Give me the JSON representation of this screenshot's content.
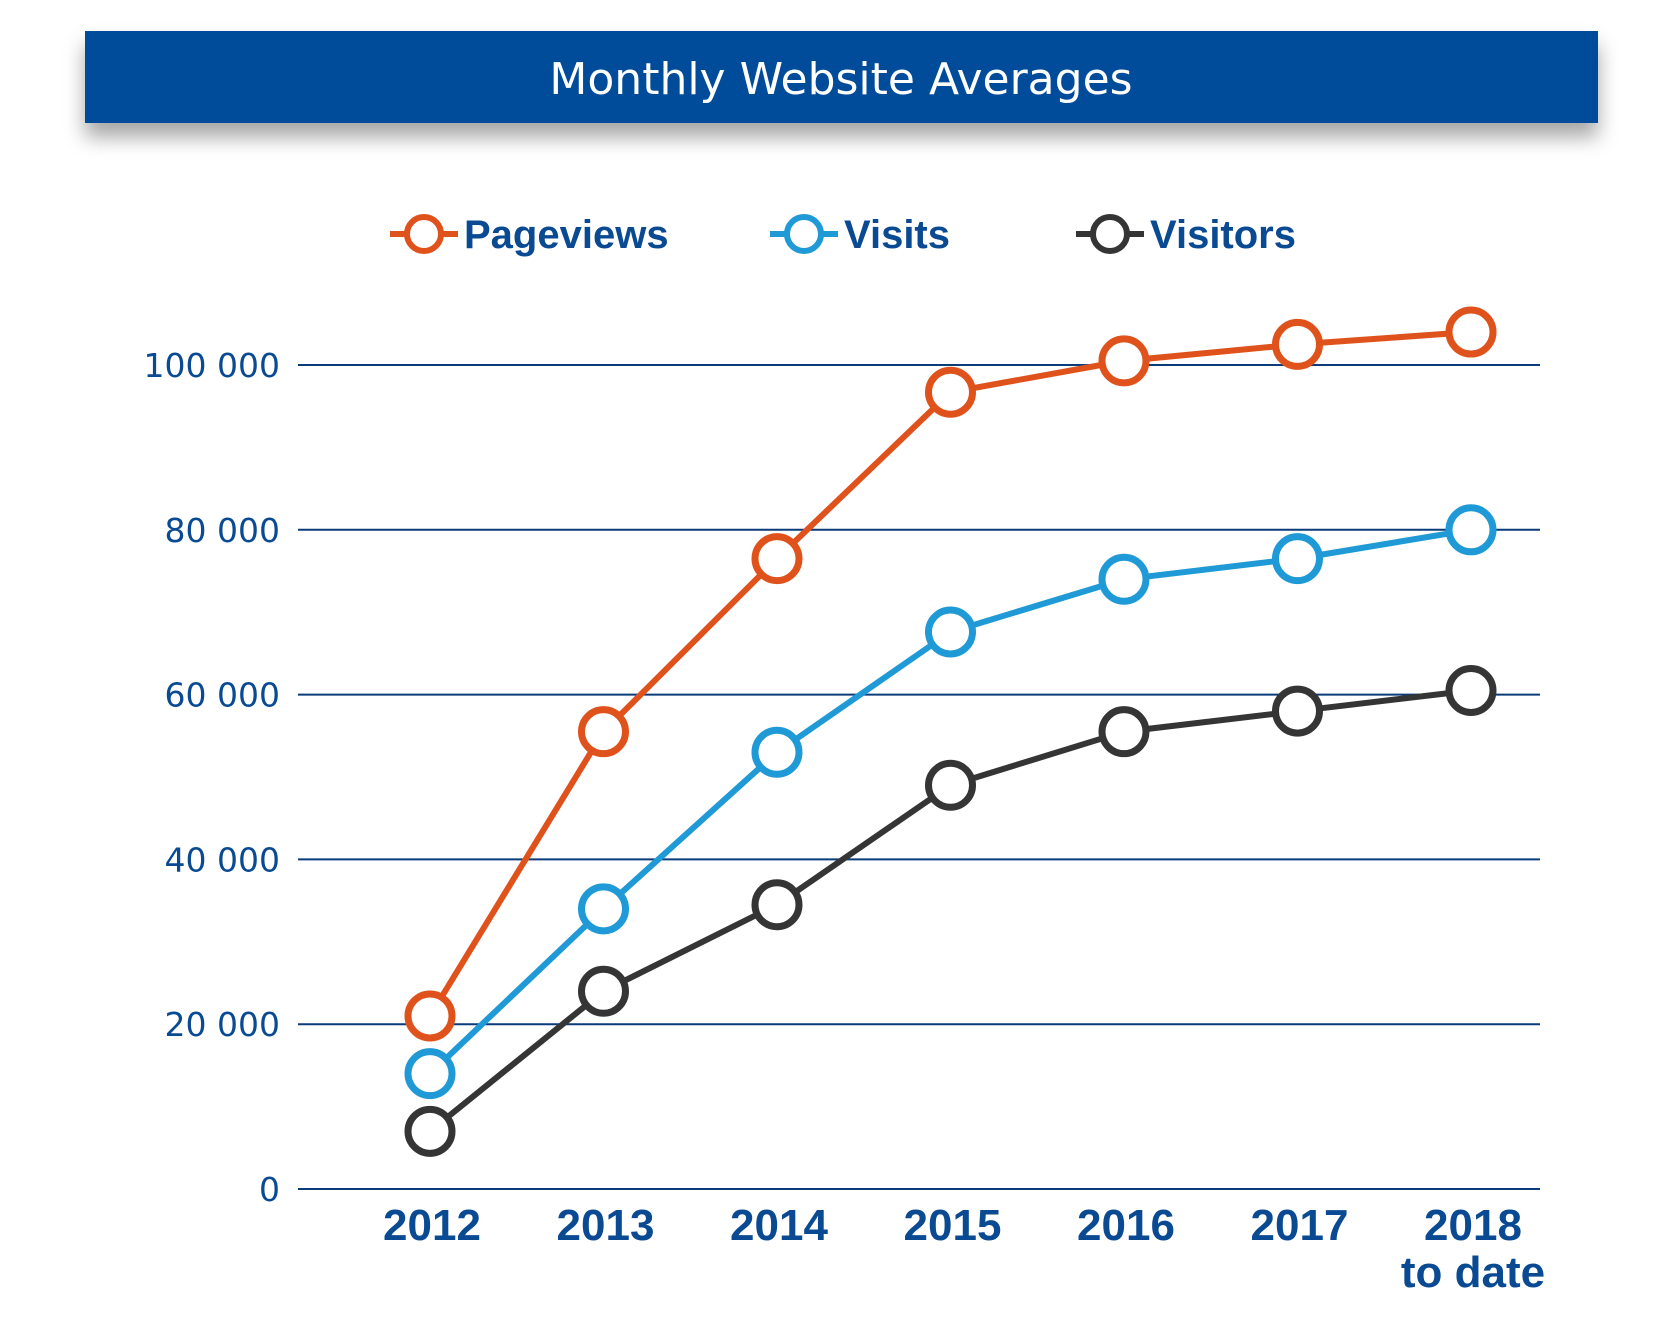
{
  "colors": {
    "banner": "#044c9a",
    "text": "#0a4a92",
    "gridline": "#0a3c7a",
    "background": "#ffffff"
  },
  "chart_data": {
    "type": "line",
    "title": "Monthly Website Averages",
    "xlabel": "",
    "ylabel": "",
    "categories": [
      "2012",
      "2013",
      "2014",
      "2015",
      "2016",
      "2017",
      "2018"
    ],
    "category_sublabels": [
      "",
      "",
      "",
      "",
      "",
      "",
      "to date"
    ],
    "ylim": [
      0,
      100000
    ],
    "yticks": [
      0,
      20000,
      40000,
      60000,
      80000,
      100000
    ],
    "ytick_labels": [
      "0",
      "20 000",
      "40 000",
      "60 000",
      "80 000",
      "100 000"
    ],
    "grid": true,
    "legend_position": "top",
    "series": [
      {
        "name": "Pageviews",
        "color": "#e0521c",
        "values": [
          21000,
          55500,
          76500,
          96700,
          100500,
          102500,
          104000
        ]
      },
      {
        "name": "Visits",
        "color": "#1f9ad6",
        "values": [
          14000,
          34000,
          53000,
          67600,
          74000,
          76500,
          80000
        ]
      },
      {
        "name": "Visitors",
        "color": "#353535",
        "values": [
          7000,
          24000,
          34500,
          49000,
          55500,
          58000,
          60500
        ]
      }
    ]
  }
}
